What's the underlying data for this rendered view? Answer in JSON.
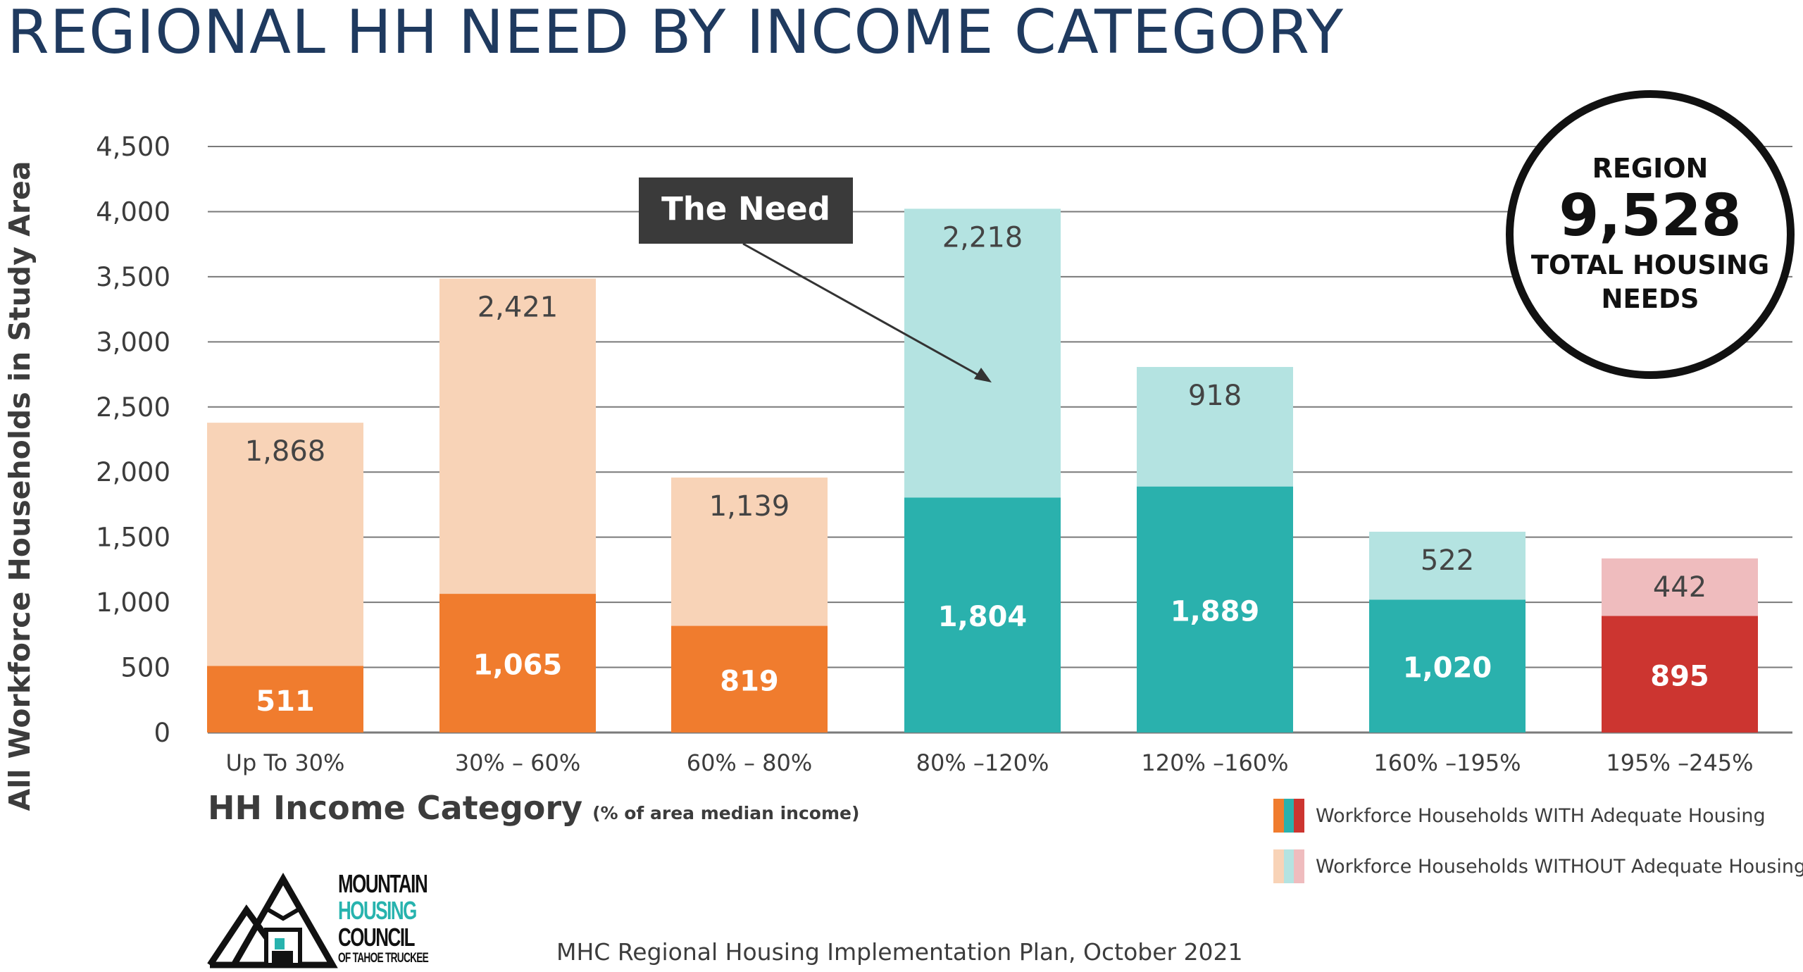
{
  "title": "REGIONAL HH NEED BY INCOME CATEGORY",
  "chart_data": {
    "type": "bar",
    "stacked": true,
    "categories": [
      "Up To 30%",
      "30% – 60%",
      "60% – 80%",
      "80% –120%",
      "120% –160%",
      "160% –195%",
      "195% –245%"
    ],
    "series": [
      {
        "name": "Workforce Households WITH Adequate Housing",
        "values": [
          511,
          1065,
          819,
          1804,
          1889,
          1020,
          895
        ]
      },
      {
        "name": "Workforce Households WITHOUT Adequate Housing",
        "values": [
          1868,
          2421,
          1139,
          2218,
          918,
          522,
          442
        ]
      }
    ],
    "with_labels": [
      "511",
      "1,065",
      "819",
      "1,804",
      "1,889",
      "1,020",
      "895"
    ],
    "without_labels": [
      "1,868",
      "2,421",
      "1,139",
      "2,218",
      "918",
      "522",
      "442"
    ],
    "colors_with": [
      "#f07c2e",
      "#f07c2e",
      "#f07c2e",
      "#2ab1ad",
      "#2ab1ad",
      "#2ab1ad",
      "#cc3530"
    ],
    "colors_without": [
      "#f8d3b7",
      "#f8d3b7",
      "#f8d3b7",
      "#b4e3e1",
      "#b4e3e1",
      "#b4e3e1",
      "#efbcbe"
    ],
    "ylim": [
      0,
      4500
    ],
    "yticks": [
      0,
      500,
      1000,
      1500,
      2000,
      2500,
      3000,
      3500,
      4000,
      4500
    ],
    "ytick_labels": [
      "0",
      "500",
      "1,000",
      "1,500",
      "2,000",
      "2,500",
      "3,000",
      "3,500",
      "4,000",
      "4,500"
    ],
    "ylabel": "All Workforce Households in Study Area",
    "xlabel": "HH Income Category",
    "xlabel_sub": "(% of area median income)",
    "grid": true,
    "legend_position": "bottom-right",
    "annotation": {
      "text": "The Need",
      "points_to": "80% –120%"
    }
  },
  "legend": {
    "with_label": "Workforce Households WITH Adequate Housing",
    "without_label": "Workforce Households WITHOUT Adequate Housing"
  },
  "badge": {
    "top": "REGION",
    "number": "9,528",
    "line1": "TOTAL HOUSING",
    "line2": "NEEDS"
  },
  "logo": {
    "line1": "MOUNTAIN",
    "line2": "HOUSING",
    "line3": "COUNCIL",
    "line4": "OF TAHOE TRUCKEE"
  },
  "source": "MHC Regional Housing Implementation Plan, October 2021",
  "colors": {
    "title": "#1f3a5f",
    "orange": "#f07c2e",
    "teal": "#2ab1ad",
    "red": "#cc3530"
  }
}
